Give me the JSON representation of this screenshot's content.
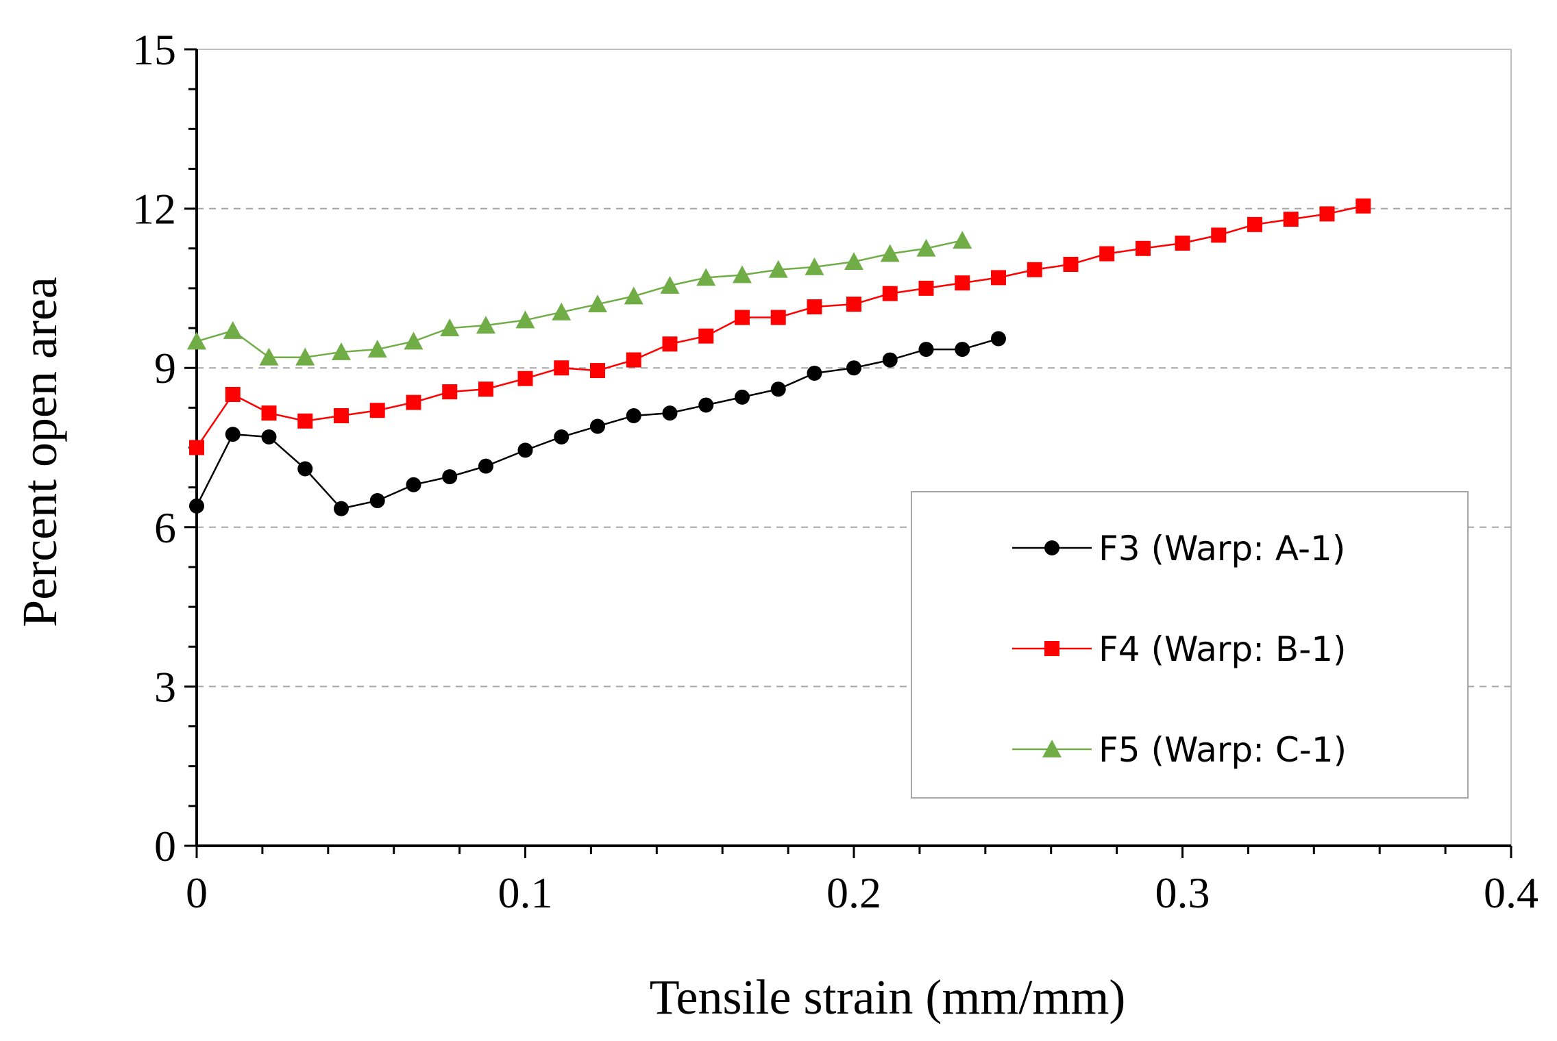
{
  "chart_data": {
    "type": "line",
    "title": "",
    "xlabel": "Tensile strain (mm/mm)",
    "ylabel": "Percent open area",
    "xlim": [
      0,
      0.4
    ],
    "ylim": [
      0,
      15
    ],
    "x_ticks": [
      "0",
      "0.1",
      "0.2",
      "0.3",
      "0.4"
    ],
    "y_ticks": [
      "0",
      "3",
      "6",
      "9",
      "12",
      "15"
    ],
    "grid": "horizontal dashed",
    "legend_position": "bottom-right",
    "series": [
      {
        "name": "F3 (Warp: A-1)",
        "color": "#000000",
        "marker": "circle",
        "x": [
          0,
          0.011,
          0.022,
          0.033,
          0.044,
          0.055,
          0.066,
          0.077,
          0.088,
          0.1,
          0.111,
          0.122,
          0.133,
          0.144,
          0.155,
          0.166,
          0.177,
          0.188,
          0.2,
          0.211,
          0.222,
          0.233,
          0.244
        ],
        "y": [
          6.4,
          7.75,
          7.7,
          7.1,
          6.35,
          6.5,
          6.8,
          6.95,
          7.15,
          7.45,
          7.7,
          7.9,
          8.1,
          8.15,
          8.3,
          8.45,
          8.6,
          8.9,
          9.0,
          9.15,
          9.35,
          9.35,
          9.55
        ]
      },
      {
        "name": "F4 (Warp: B-1)",
        "color": "#ff0000",
        "marker": "square",
        "x": [
          0,
          0.011,
          0.022,
          0.033,
          0.044,
          0.055,
          0.066,
          0.077,
          0.088,
          0.1,
          0.111,
          0.122,
          0.133,
          0.144,
          0.155,
          0.166,
          0.177,
          0.188,
          0.2,
          0.211,
          0.222,
          0.233,
          0.244,
          0.255,
          0.266,
          0.277,
          0.288,
          0.3,
          0.311,
          0.322,
          0.333,
          0.344,
          0.355
        ],
        "y": [
          7.5,
          8.5,
          8.15,
          8.0,
          8.1,
          8.2,
          8.35,
          8.55,
          8.6,
          8.8,
          9.0,
          8.95,
          9.15,
          9.45,
          9.6,
          9.95,
          9.95,
          10.15,
          10.2,
          10.4,
          10.5,
          10.6,
          10.7,
          10.85,
          10.95,
          11.15,
          11.25,
          11.35,
          11.5,
          11.7,
          11.8,
          11.9,
          12.05
        ]
      },
      {
        "name": "F5 (Warp: C-1)",
        "color": "#70ad47",
        "marker": "triangle",
        "x": [
          0,
          0.011,
          0.022,
          0.033,
          0.044,
          0.055,
          0.066,
          0.077,
          0.088,
          0.1,
          0.111,
          0.122,
          0.133,
          0.144,
          0.155,
          0.166,
          0.177,
          0.188,
          0.2,
          0.211,
          0.222,
          0.233
        ],
        "y": [
          9.5,
          9.7,
          9.2,
          9.2,
          9.3,
          9.35,
          9.5,
          9.75,
          9.8,
          9.9,
          10.05,
          10.2,
          10.35,
          10.55,
          10.7,
          10.75,
          10.85,
          10.9,
          11.0,
          11.15,
          11.25,
          11.4
        ]
      }
    ]
  }
}
